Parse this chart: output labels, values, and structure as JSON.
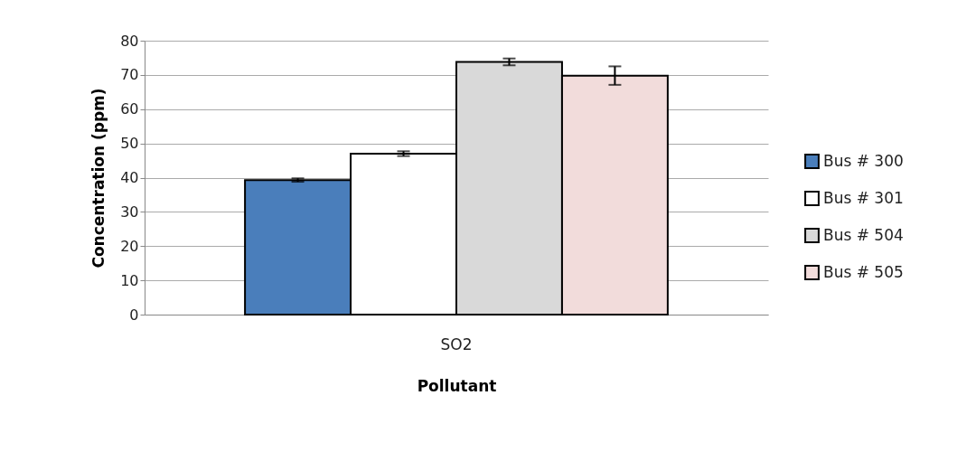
{
  "chart_data": {
    "type": "bar",
    "xlabel": "Pollutant",
    "ylabel": "Concentration (ppm)",
    "categories": [
      "SO2"
    ],
    "series": [
      {
        "name": "Bus # 300",
        "color": "#4a7ebb",
        "values": [
          39.3
        ],
        "errors": [
          0.5
        ]
      },
      {
        "name": "Bus # 301",
        "color": "#ffffff",
        "values": [
          47
        ],
        "errors": [
          0.7
        ]
      },
      {
        "name": "Bus # 504",
        "color": "#d9d9d9",
        "values": [
          73.8
        ],
        "errors": [
          1
        ]
      },
      {
        "name": "Bus # 505",
        "color": "#f2dcdb",
        "values": [
          69.8
        ],
        "errors": [
          2.7
        ]
      }
    ],
    "ylim": [
      0,
      80
    ],
    "yticks": [
      0,
      10,
      20,
      30,
      40,
      50,
      60,
      70,
      80
    ],
    "grid": "y",
    "legend": "right"
  }
}
